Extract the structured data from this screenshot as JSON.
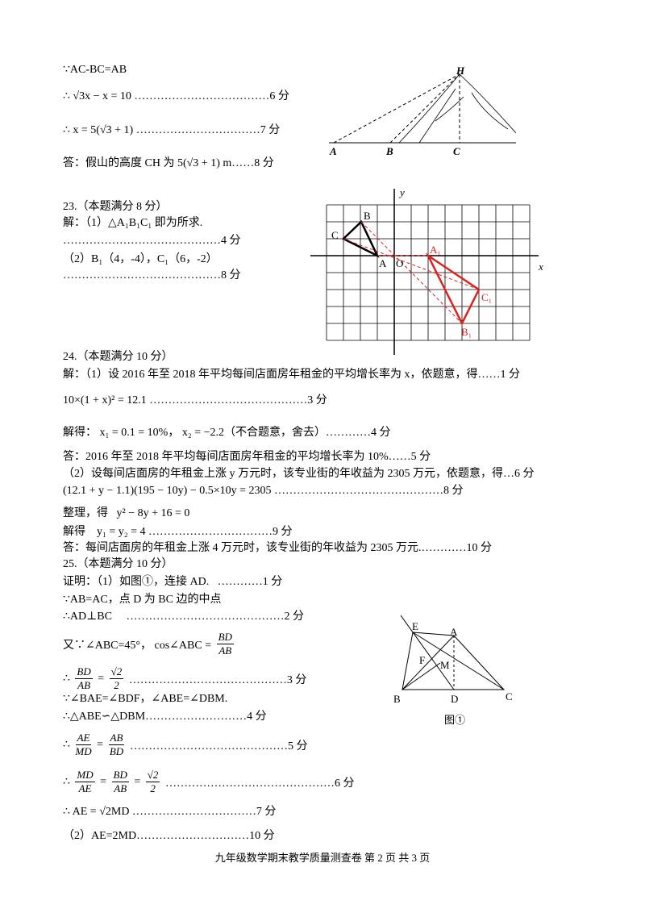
{
  "lines": [
    [
      "∵AC-BC=AB"
    ],
    [
      "∴ √3x − x = 10 ………………………………6 分"
    ],
    [
      "∴ x = 5(√3 + 1) ……………………………7 分"
    ],
    [
      "答：假山的高度 CH 为 5(√3 + 1) m……8 分"
    ],
    [
      "23.（本题满分 8 分）"
    ],
    [
      "解：（1）△A₁B₁C₁ 即为所求."
    ],
    [
      "……………………………………4 分"
    ],
    [
      "（2）B₁（4，-4），C₁（6，-2）"
    ],
    [
      "……………………………………8 分"
    ],
    [
      "24.（本题满分 10 分）"
    ],
    [
      "解：（1）设 2016 年至 2018 年平均每间店面房年租金的平均增长率为 x，依题意，得……1 分"
    ],
    [
      "10×(1 + x)² = 12.1 ……………………………………3 分"
    ],
    [
      "解得： x₁ = 0.1 = 10%， x₂ = −2.2（不合题意，舍去）…………4 分"
    ],
    [
      "答：2016 年至 2018 年平均每间店面房年租金的平均增长率为 10%……5 分"
    ],
    [
      "（2）设每间店面房的年租金上涨 y 万元时，该专业街的年收益为 2305 万元，依题意，得…6 分"
    ],
    [
      "(12.1 + y − 1.1)(195 − 10y) − 0.5×10y = 2305 ………………………………………8 分"
    ],
    [
      "整理，得   y² − 8y + 16 = 0"
    ],
    [
      "解得    y₁ = y₂ = 4 ……………………………9 分"
    ],
    [
      "答：每间店面房的年租金上涨 4 万元时，该专业街的年收益为 2305 万元.…………10 分"
    ],
    [
      "25.（本题满分 10 分）"
    ],
    [
      "证明：（1）如图①，连接 AD.   …………1 分"
    ],
    [
      "∵AB=AC，点 D 为 BC 边的中点"
    ],
    [
      "∴AD⊥BC     ……………………………………2 分"
    ],
    [
      "又∵∠ABC=45°， cos∠ABC = ",
      {
        "num": "BD",
        "den": "AB"
      }
    ],
    [
      "∴ ",
      {
        "num": "BD",
        "den": "AB"
      },
      " = ",
      {
        "num": "√2",
        "den": "2"
      },
      " ……………………………………3 分"
    ],
    [
      "∵∠BAE=∠BDF，∠ABE=∠DBM."
    ],
    [
      "∴△ABE∽△DBM………………………4 分"
    ],
    [
      "∴ ",
      {
        "num": "AE",
        "den": "MD"
      },
      " = ",
      {
        "num": "AB",
        "den": "BD"
      },
      " ……………………………………5 分"
    ],
    [
      "∴ ",
      {
        "num": "MD",
        "den": "AE"
      },
      " = ",
      {
        "num": "BD",
        "den": "AB"
      },
      " = ",
      {
        "num": "√2",
        "den": "2"
      },
      " ………………………………………6 分"
    ],
    [
      "∴ AE = √2MD ……………………………7 分"
    ],
    [
      "（2）AE=2MD…………………………10 分"
    ]
  ],
  "figure_mountain": {
    "labels": [
      "H",
      "A",
      "B",
      "C"
    ]
  },
  "figure_grid": {
    "labels": [
      "y",
      "x",
      "B",
      "C",
      "A",
      "O",
      "A₁",
      "C₁",
      "B₁"
    ]
  },
  "figure_triangle": {
    "labels": [
      "E",
      "A",
      "F",
      "M",
      "B",
      "D",
      "C"
    ],
    "caption": "图①"
  },
  "footer": "九年级数学期末教学质量测查卷   第 2 页 共 3 页"
}
